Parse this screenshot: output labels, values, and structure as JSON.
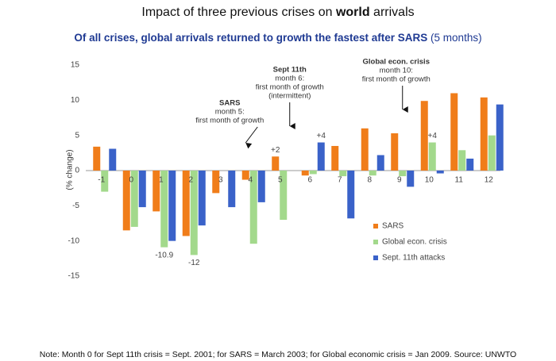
{
  "chart_data": {
    "type": "bar",
    "title": [
      "Impact of three previous crises on ",
      "world",
      " arrivals"
    ],
    "subtitle": [
      "Of all crises, global arrivals returned to growth the fastest after SARS",
      " (5 months)"
    ],
    "y_label": "(% change)",
    "categories": [
      "-1",
      "0",
      "1",
      "2",
      "3",
      "4",
      "5",
      "6",
      "7",
      "8",
      "9",
      "10",
      "11",
      "12"
    ],
    "series": [
      {
        "name": "SARS",
        "color": "#f07d1a",
        "values": [
          3.4,
          -8.5,
          -5.8,
          -9.3,
          -3.2,
          -1.3,
          2,
          -0.7,
          3.5,
          6,
          5.3,
          9.9,
          11,
          10.4
        ],
        "value_labels": [
          null,
          null,
          null,
          null,
          null,
          null,
          "+2",
          null,
          null,
          null,
          null,
          null,
          null,
          null
        ]
      },
      {
        "name": "Global econ. crisis",
        "color": "#a3d98c",
        "values": [
          -3,
          -8,
          -10.9,
          -12,
          0,
          -10.4,
          -7,
          -0.5,
          -0.8,
          -0.7,
          -0.8,
          4,
          2.9,
          5
        ],
        "value_labels": [
          null,
          null,
          "-10.9",
          "-12",
          null,
          null,
          null,
          null,
          null,
          null,
          null,
          "+4",
          null,
          null
        ]
      },
      {
        "name": "Sept. 11th attacks",
        "color": "#3a62c9",
        "values": [
          3.1,
          -5.2,
          -10,
          -7.8,
          -5.2,
          -4.5,
          0,
          4,
          -6.8,
          2.2,
          -2.3,
          -0.4,
          1.7,
          9.4
        ],
        "value_labels": [
          null,
          null,
          null,
          null,
          null,
          null,
          null,
          "+4",
          null,
          null,
          null,
          null,
          null,
          null
        ]
      }
    ],
    "ylim": [
      -15,
      15
    ],
    "yticks": [
      -15,
      -10,
      -5,
      0,
      5,
      10,
      15
    ],
    "grid": false,
    "legend": "lower right",
    "annotations": [
      {
        "lines": [
          "SARS",
          "month 5:",
          "first month of growth"
        ],
        "color": "#f07d1a",
        "category": 6
      },
      {
        "lines": [
          "Sept 11th",
          "month 6:",
          "first month of growth",
          "(intermittent)"
        ],
        "color": "#2a6fb0",
        "category": 7
      },
      {
        "lines": [
          "Global econ. crisis",
          "month 10:",
          "first month of growth"
        ],
        "color": "#5bb53e",
        "category": 11
      }
    ],
    "footnote": "Note: Month 0 for Sept 11th crisis = Sept. 2001;  for SARS = March 2003;  for Global economic crisis = Jan 2009.  Source: UNWTO"
  }
}
